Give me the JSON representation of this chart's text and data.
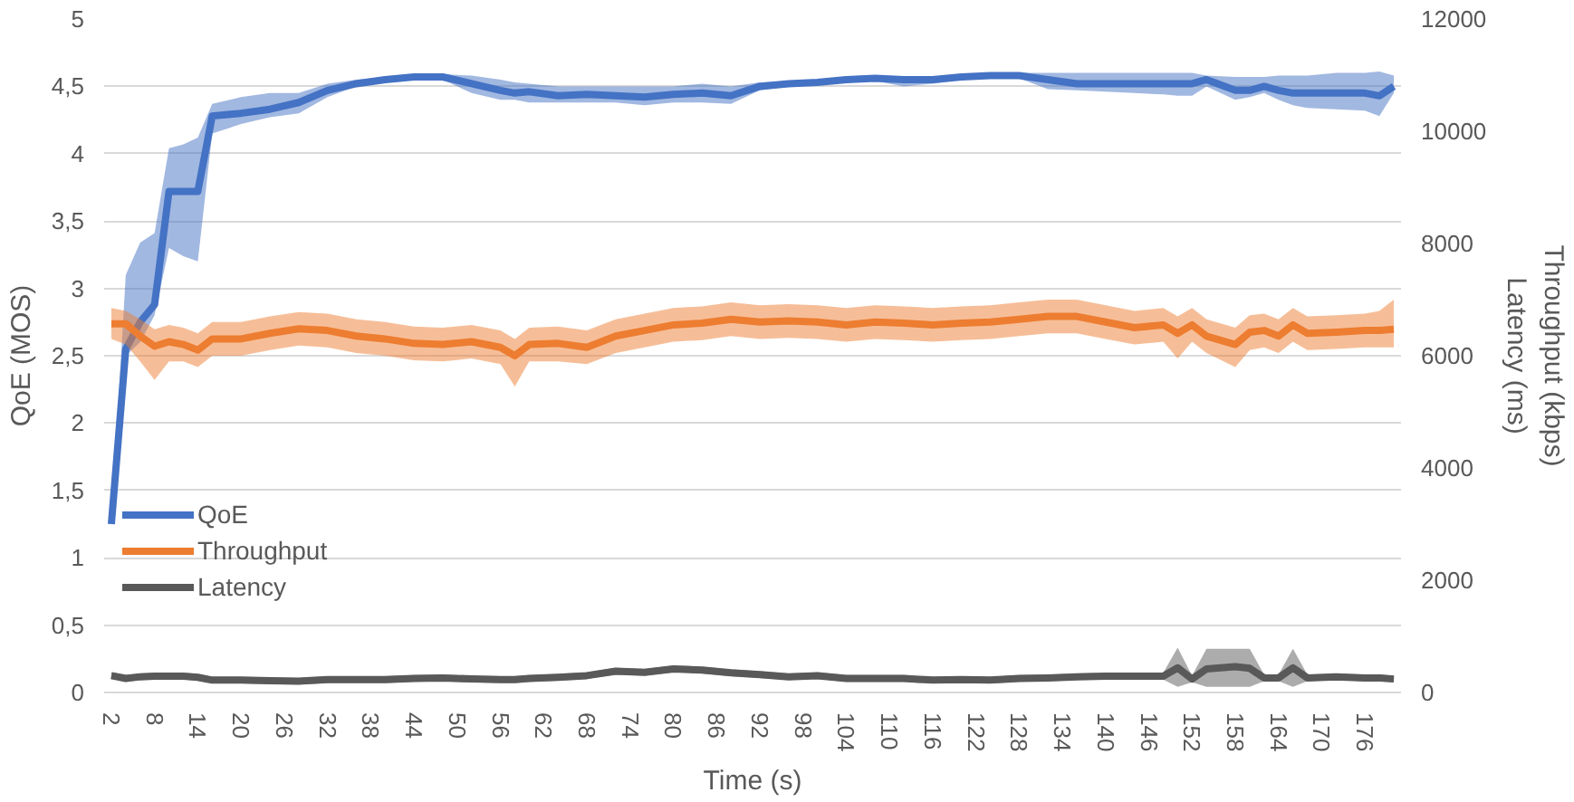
{
  "chart_data": {
    "type": "line",
    "xlabel": "Time (s)",
    "ylabel": "QoE (MOS)",
    "y2label": "Throughput (kbps)\nLatency (ms)",
    "x": [
      2,
      4,
      6,
      8,
      10,
      12,
      14,
      16,
      20,
      24,
      28,
      32,
      36,
      40,
      44,
      48,
      52,
      56,
      58,
      60,
      64,
      68,
      72,
      76,
      80,
      84,
      88,
      92,
      96,
      100,
      104,
      108,
      112,
      116,
      120,
      124,
      128,
      132,
      136,
      140,
      144,
      148,
      150,
      152,
      154,
      158,
      160,
      162,
      164,
      166,
      168,
      172,
      176,
      178,
      180
    ],
    "xlim": [
      1,
      181
    ],
    "xticks": [
      2,
      8,
      14,
      20,
      26,
      32,
      38,
      44,
      50,
      56,
      62,
      68,
      74,
      80,
      86,
      92,
      98,
      104,
      110,
      116,
      122,
      128,
      134,
      140,
      146,
      152,
      158,
      164,
      170,
      176
    ],
    "ylim": [
      0,
      5
    ],
    "yticks": [
      0,
      {
        "value": 0.5,
        "label": "0,5"
      },
      1,
      {
        "value": 1.5,
        "label": "1,5"
      },
      2,
      {
        "value": 2.5,
        "label": "2,5"
      },
      3,
      {
        "value": 3.5,
        "label": "3,5"
      },
      4,
      {
        "value": 4.5,
        "label": "4,5"
      },
      5
    ],
    "y2lim": [
      0,
      12000
    ],
    "y2ticks": [
      0,
      2000,
      4000,
      6000,
      8000,
      10000,
      12000
    ],
    "grid": "y",
    "legend": "bottom left",
    "marker": "none",
    "line_style": "solid",
    "series": [
      {
        "name": "QoE",
        "color": "#4472c4",
        "axis": "y",
        "values": [
          1.25,
          2.55,
          2.75,
          2.88,
          3.72,
          3.72,
          3.72,
          4.28,
          4.3,
          4.33,
          4.38,
          4.47,
          4.52,
          4.55,
          4.57,
          4.57,
          4.52,
          4.47,
          4.45,
          4.46,
          4.43,
          4.44,
          4.43,
          4.42,
          4.44,
          4.45,
          4.43,
          4.5,
          4.52,
          4.53,
          4.55,
          4.56,
          4.55,
          4.55,
          4.57,
          4.58,
          4.58,
          4.55,
          4.52,
          4.52,
          4.52,
          4.52,
          4.52,
          4.52,
          4.55,
          4.47,
          4.47,
          4.5,
          4.47,
          4.45,
          4.45,
          4.45,
          4.45,
          4.43,
          4.5
        ],
        "lower": [
          1.25,
          2.5,
          2.6,
          2.8,
          3.3,
          3.24,
          3.2,
          4.15,
          4.22,
          4.27,
          4.3,
          4.42,
          4.5,
          4.53,
          4.55,
          4.55,
          4.45,
          4.4,
          4.4,
          4.38,
          4.38,
          4.38,
          4.38,
          4.36,
          4.38,
          4.38,
          4.37,
          4.47,
          4.5,
          4.51,
          4.53,
          4.54,
          4.5,
          4.52,
          4.55,
          4.56,
          4.56,
          4.48,
          4.47,
          4.46,
          4.45,
          4.44,
          4.43,
          4.43,
          4.5,
          4.4,
          4.42,
          4.45,
          4.4,
          4.36,
          4.34,
          4.33,
          4.32,
          4.28,
          4.45
        ],
        "upper": [
          1.25,
          3.1,
          3.34,
          3.41,
          4.04,
          4.07,
          4.12,
          4.37,
          4.42,
          4.45,
          4.45,
          4.52,
          4.55,
          4.57,
          4.59,
          4.59,
          4.58,
          4.55,
          4.53,
          4.52,
          4.5,
          4.5,
          4.5,
          4.5,
          4.5,
          4.52,
          4.5,
          4.53,
          4.54,
          4.55,
          4.57,
          4.58,
          4.57,
          4.57,
          4.59,
          4.6,
          4.6,
          4.6,
          4.6,
          4.6,
          4.6,
          4.6,
          4.6,
          4.6,
          4.58,
          4.57,
          4.57,
          4.57,
          4.58,
          4.58,
          4.58,
          4.6,
          4.6,
          4.61,
          4.58
        ]
      },
      {
        "name": "Throughput",
        "color": "#ed7d31",
        "axis": "y2",
        "values": [
          6570,
          6570,
          6350,
          6170,
          6250,
          6200,
          6100,
          6300,
          6300,
          6400,
          6480,
          6450,
          6350,
          6300,
          6220,
          6200,
          6250,
          6150,
          6000,
          6200,
          6220,
          6150,
          6350,
          6450,
          6550,
          6580,
          6650,
          6600,
          6620,
          6600,
          6550,
          6600,
          6580,
          6550,
          6580,
          6600,
          6650,
          6700,
          6700,
          6600,
          6500,
          6550,
          6400,
          6550,
          6350,
          6200,
          6420,
          6450,
          6350,
          6550,
          6400,
          6420,
          6450,
          6450,
          6470
        ],
        "lower": [
          6300,
          6200,
          5900,
          5570,
          5900,
          5900,
          5800,
          6000,
          6000,
          6100,
          6180,
          6150,
          6050,
          6000,
          5920,
          5900,
          5950,
          5850,
          5450,
          5900,
          5900,
          5850,
          6050,
          6150,
          6250,
          6280,
          6350,
          6300,
          6320,
          6300,
          6250,
          6300,
          6280,
          6250,
          6280,
          6300,
          6350,
          6400,
          6400,
          6300,
          6200,
          6250,
          5950,
          6250,
          6050,
          5800,
          6100,
          6150,
          6050,
          6250,
          6100,
          6120,
          6150,
          6150,
          6150
        ],
        "upper": [
          6850,
          6800,
          6650,
          6470,
          6550,
          6500,
          6400,
          6600,
          6600,
          6700,
          6780,
          6750,
          6650,
          6600,
          6520,
          6500,
          6550,
          6450,
          6300,
          6500,
          6520,
          6450,
          6650,
          6750,
          6850,
          6880,
          6950,
          6900,
          6920,
          6900,
          6850,
          6900,
          6880,
          6850,
          6880,
          6900,
          6950,
          7000,
          7000,
          6900,
          6800,
          6850,
          6700,
          6850,
          6650,
          6500,
          6720,
          6750,
          6650,
          6850,
          6700,
          6720,
          6750,
          6800,
          7000
        ]
      },
      {
        "name": "Latency",
        "color": "#595959",
        "axis": "y2",
        "values": [
          300,
          250,
          280,
          290,
          290,
          290,
          270,
          220,
          220,
          210,
          200,
          230,
          230,
          230,
          250,
          260,
          240,
          230,
          230,
          250,
          270,
          300,
          380,
          360,
          420,
          400,
          350,
          320,
          280,
          300,
          250,
          250,
          250,
          220,
          230,
          220,
          250,
          260,
          280,
          290,
          290,
          290,
          440,
          240,
          420,
          460,
          430,
          260,
          260,
          440,
          260,
          280,
          260,
          260,
          240
        ],
        "lower": [
          240,
          190,
          220,
          230,
          230,
          230,
          210,
          160,
          160,
          150,
          140,
          170,
          170,
          170,
          190,
          200,
          180,
          170,
          170,
          190,
          210,
          240,
          320,
          300,
          360,
          340,
          290,
          260,
          220,
          240,
          190,
          190,
          190,
          160,
          170,
          160,
          190,
          200,
          220,
          230,
          230,
          230,
          100,
          180,
          100,
          100,
          100,
          200,
          200,
          100,
          200,
          220,
          200,
          200,
          180
        ],
        "upper": [
          360,
          310,
          340,
          350,
          350,
          350,
          330,
          280,
          280,
          270,
          260,
          290,
          290,
          290,
          310,
          320,
          300,
          290,
          290,
          310,
          330,
          360,
          440,
          420,
          480,
          460,
          410,
          380,
          340,
          360,
          310,
          310,
          310,
          280,
          290,
          280,
          310,
          320,
          340,
          350,
          350,
          350,
          800,
          300,
          780,
          780,
          780,
          320,
          320,
          780,
          320,
          340,
          320,
          320,
          300
        ]
      }
    ]
  }
}
